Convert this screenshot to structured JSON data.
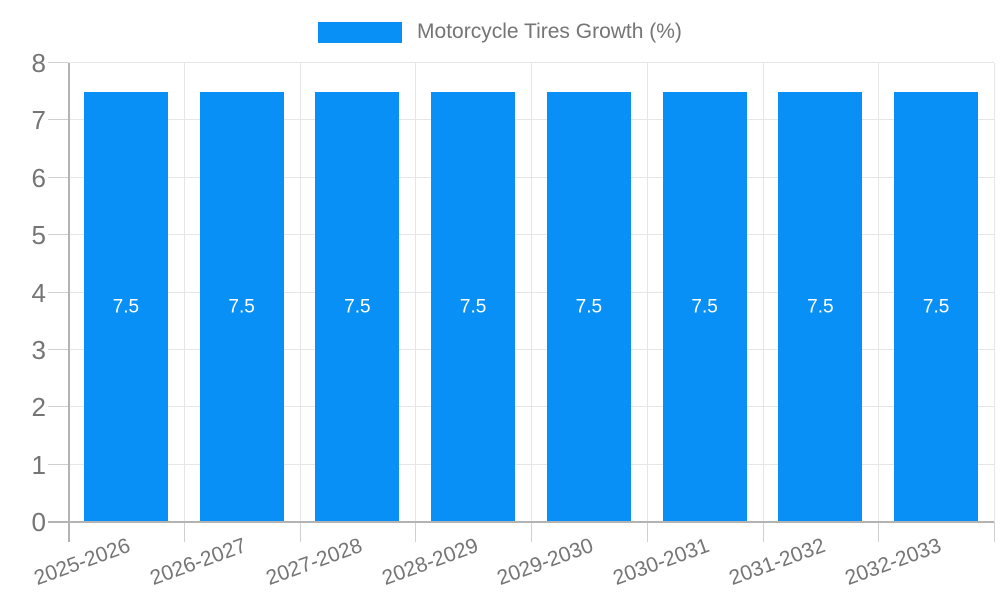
{
  "legend": {
    "label": "Motorcycle Tires Growth (%)"
  },
  "chart_data": {
    "type": "bar",
    "title": "Motorcycle Tires Growth (%)",
    "categories": [
      "2025-2026",
      "2026-2027",
      "2027-2028",
      "2028-2029",
      "2029-2030",
      "2030-2031",
      "2031-2032",
      "2032-2033"
    ],
    "series": [
      {
        "name": "Motorcycle Tires Growth (%)",
        "values": [
          7.5,
          7.5,
          7.5,
          7.5,
          7.5,
          7.5,
          7.5,
          7.5
        ],
        "data_labels": [
          "7.5",
          "7.5",
          "7.5",
          "7.5",
          "7.5",
          "7.5",
          "7.5",
          "7.5"
        ]
      }
    ],
    "xlabel": "",
    "ylabel": "",
    "ylim": [
      0,
      8
    ],
    "ytick_step": 1,
    "ytick_labels": [
      "0",
      "1",
      "2",
      "3",
      "4",
      "5",
      "6",
      "7",
      "8"
    ],
    "grid": "on",
    "legend_position": "top",
    "colors": {
      "bar": "#0990f6",
      "axis_line": "#b3b3b3",
      "gridline": "#e6e6e6",
      "tick": "#cfcfcf",
      "axis_text": "#757575",
      "bar_label_text": "#ffffff",
      "background": "#ffffff"
    }
  }
}
